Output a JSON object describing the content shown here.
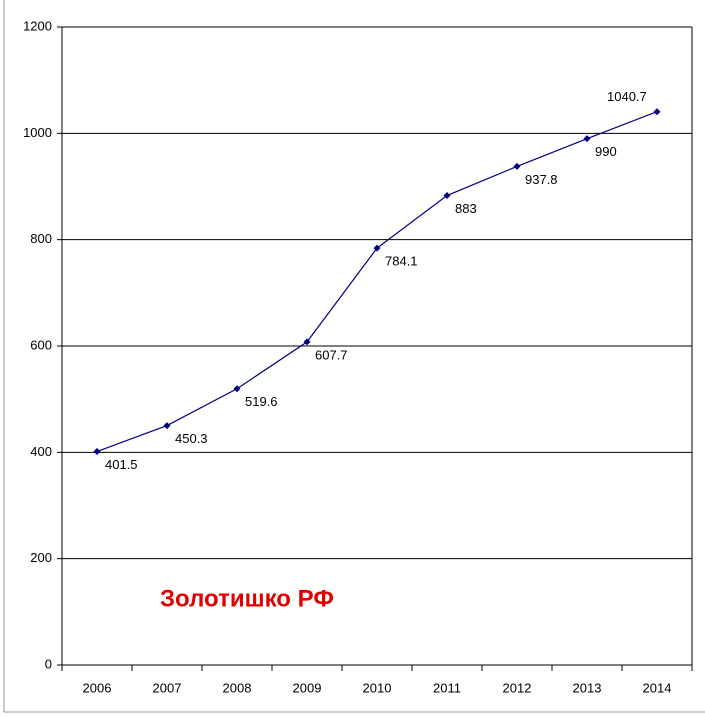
{
  "chart_data": {
    "type": "line",
    "title": "Золотишко РФ",
    "categories": [
      "2006",
      "2007",
      "2008",
      "2009",
      "2010",
      "2011",
      "2012",
      "2013",
      "2014"
    ],
    "series": [
      {
        "name": "Золотишко РФ",
        "color": "#000080",
        "values": [
          401.5,
          450.3,
          519.6,
          607.7,
          784.1,
          883,
          937.8,
          990,
          1040.7
        ]
      }
    ],
    "ylim": [
      0,
      1200
    ],
    "yticks": [
      0,
      200,
      400,
      600,
      800,
      1000,
      1200
    ],
    "grid": true
  }
}
